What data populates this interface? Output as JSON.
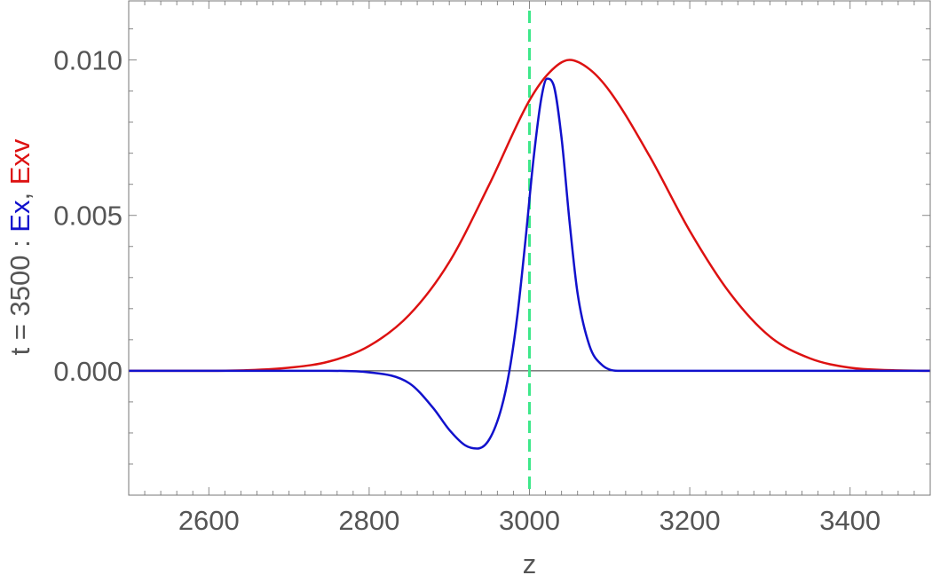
{
  "chart_data": {
    "type": "line",
    "xlabel": "z",
    "ylabel": {
      "prefix": "t = 3500 : ",
      "series1": "Ex",
      "separator": ", ",
      "series2": "Exv"
    },
    "xlim": [
      2500,
      3500
    ],
    "ylim": [
      -0.004,
      0.0119
    ],
    "x_ticks": [
      2600,
      2800,
      3000,
      3200,
      3400
    ],
    "x_tick_labels": [
      "2600",
      "2800",
      "3000",
      "3200",
      "3400"
    ],
    "y_ticks": [
      0.0,
      0.005,
      0.01
    ],
    "y_tick_labels": [
      "0.000",
      "0.005",
      "0.010"
    ],
    "reference_line": {
      "x": 3000,
      "style": "dashed",
      "color": "#3ee88a"
    },
    "series": [
      {
        "name": "Exv",
        "color": "#dd1111",
        "x": [
          2500,
          2600,
          2650,
          2700,
          2750,
          2800,
          2850,
          2900,
          2950,
          3000,
          3025,
          3050,
          3075,
          3100,
          3150,
          3200,
          3250,
          3300,
          3350,
          3400,
          3450,
          3500
        ],
        "y": [
          0.0,
          0.0,
          2e-05,
          0.0001,
          0.0003,
          0.0008,
          0.0018,
          0.0035,
          0.006,
          0.0087,
          0.0096,
          0.01,
          0.0097,
          0.009,
          0.0069,
          0.0045,
          0.0025,
          0.0011,
          0.0004,
          0.0001,
          2e-05,
          0.0
        ]
      },
      {
        "name": "Ex",
        "color": "#1111cc",
        "x": [
          2500,
          2750,
          2800,
          2850,
          2880,
          2900,
          2920,
          2935,
          2950,
          2965,
          2975,
          2985,
          2995,
          3005,
          3015,
          3022,
          3030,
          3040,
          3050,
          3060,
          3075,
          3090,
          3110,
          3150,
          3500
        ],
        "y": [
          0.0,
          0.0,
          -5e-05,
          -0.0004,
          -0.0012,
          -0.0019,
          -0.0024,
          -0.0025,
          -0.0022,
          -0.0012,
          0.0,
          0.0018,
          0.0042,
          0.0068,
          0.0088,
          0.0094,
          0.0092,
          0.0075,
          0.0048,
          0.0025,
          0.0008,
          0.0002,
          0.0,
          0.0,
          0.0
        ]
      }
    ]
  }
}
